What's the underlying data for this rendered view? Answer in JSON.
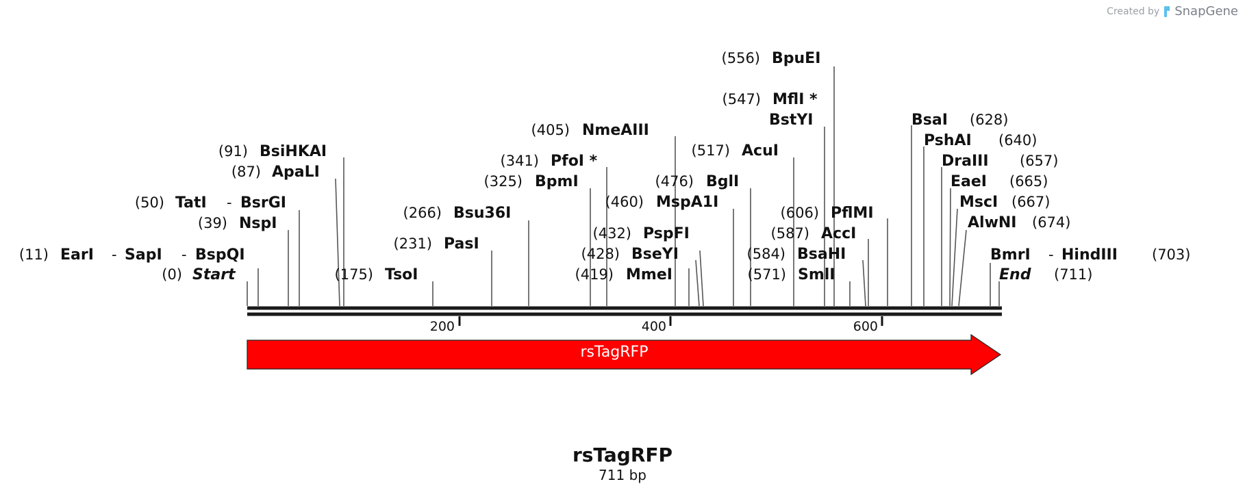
{
  "credit": {
    "prefix": "Created by",
    "brand": "SnapGene"
  },
  "sequence": {
    "name": "rsTagRFP",
    "length_label": "711 bp",
    "length": 711
  },
  "feature": {
    "label": "rsTagRFP",
    "color": "#ff0000",
    "direction": "forward"
  },
  "ruler": {
    "ticks": [
      "200",
      "400",
      "600"
    ]
  },
  "sites": [
    {
      "pos": "(0)",
      "name": "Start",
      "italic": true
    },
    {
      "pos": "(11)",
      "name": "EarI",
      "joined": [
        "SapI",
        "BspQI"
      ]
    },
    {
      "pos": "(39)",
      "name": "NspI"
    },
    {
      "pos": "(50)",
      "name": "TatI",
      "joined": [
        "BsrGI"
      ]
    },
    {
      "pos": "(87)",
      "name": "ApaLI"
    },
    {
      "pos": "(91)",
      "name": "BsiHKAI"
    },
    {
      "pos": "(175)",
      "name": "TsoI"
    },
    {
      "pos": "(231)",
      "name": "PasI"
    },
    {
      "pos": "(266)",
      "name": "Bsu36I"
    },
    {
      "pos": "(325)",
      "name": "BpmI"
    },
    {
      "pos": "(341)",
      "name": "PfoI *"
    },
    {
      "pos": "(405)",
      "name": "NmeAIII"
    },
    {
      "pos": "(419)",
      "name": "MmeI"
    },
    {
      "pos": "(428)",
      "name": "BseYI"
    },
    {
      "pos": "(432)",
      "name": "PspFI"
    },
    {
      "pos": "(460)",
      "name": "MspA1I"
    },
    {
      "pos": "(476)",
      "name": "BglI"
    },
    {
      "pos": "(517)",
      "name": "AcuI"
    },
    {
      "pos": "(547)",
      "name": "MflI *"
    },
    {
      "pos": "",
      "name": "BstYI"
    },
    {
      "pos": "(556)",
      "name": "BpuEI"
    },
    {
      "pos": "(571)",
      "name": "SmlI"
    },
    {
      "pos": "(584)",
      "name": "BsaHI"
    },
    {
      "pos": "(587)",
      "name": "AccI"
    },
    {
      "pos": "(606)",
      "name": "PflMI"
    },
    {
      "pos": "(628)",
      "name": "BsaI"
    },
    {
      "pos": "(640)",
      "name": "PshAI"
    },
    {
      "pos": "(657)",
      "name": "DraIII"
    },
    {
      "pos": "(665)",
      "name": "EaeI"
    },
    {
      "pos": "(667)",
      "name": "MscI"
    },
    {
      "pos": "(674)",
      "name": "AlwNI"
    },
    {
      "pos": "(703)",
      "name": "BmrI",
      "joined": [
        "HindIII"
      ]
    },
    {
      "pos": "(711)",
      "name": "End",
      "italic": true
    }
  ]
}
